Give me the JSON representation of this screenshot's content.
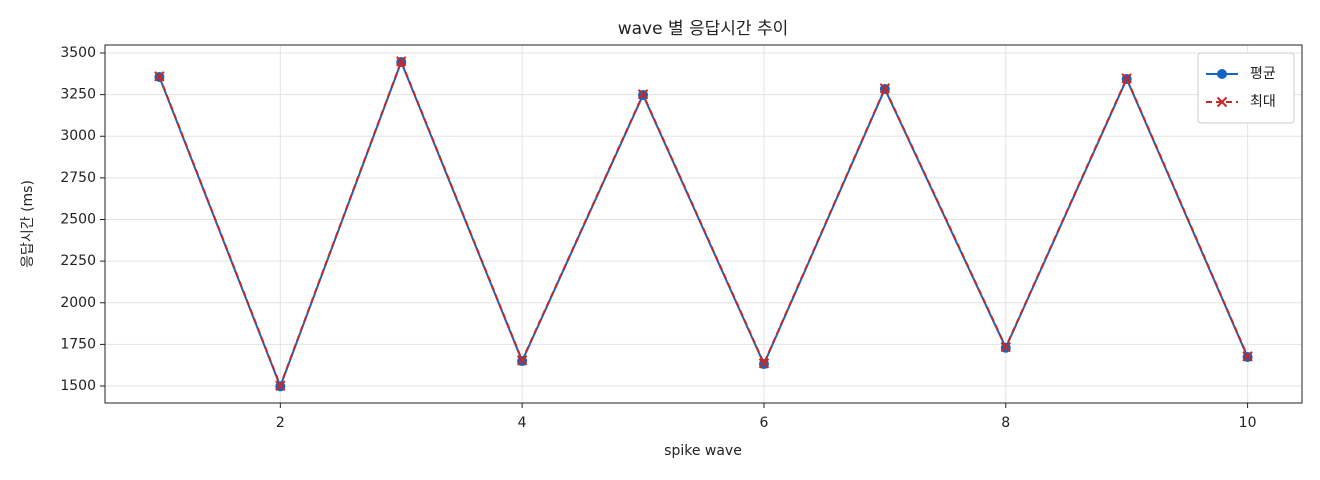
{
  "chart_data": {
    "type": "line",
    "title": "wave 별 응답시간 추이",
    "xlabel": "spike wave",
    "ylabel": "응답시간 (ms)",
    "x": [
      1,
      2,
      3,
      4,
      5,
      6,
      7,
      8,
      9,
      10
    ],
    "series": [
      {
        "name": "평균",
        "color": "#1565c0",
        "marker": "o",
        "linestyle": "solid",
        "values": [
          3356,
          1498,
          3446,
          1650,
          3248,
          1632,
          3284,
          1730,
          3344,
          1674
        ]
      },
      {
        "name": "최대",
        "color": "#c62828",
        "marker": "x",
        "linestyle": "dashed",
        "values": [
          3360,
          1502,
          3450,
          1654,
          3252,
          1636,
          3288,
          1734,
          3348,
          1678
        ]
      }
    ],
    "xlim": [
      0.55,
      10.45
    ],
    "xticks": [
      2,
      4,
      6,
      8,
      10
    ],
    "ylim": [
      1398,
      3548
    ],
    "yticks": [
      1500,
      1750,
      2000,
      2250,
      2500,
      2750,
      3000,
      3250,
      3500
    ],
    "grid": true,
    "legend": "upper right"
  }
}
